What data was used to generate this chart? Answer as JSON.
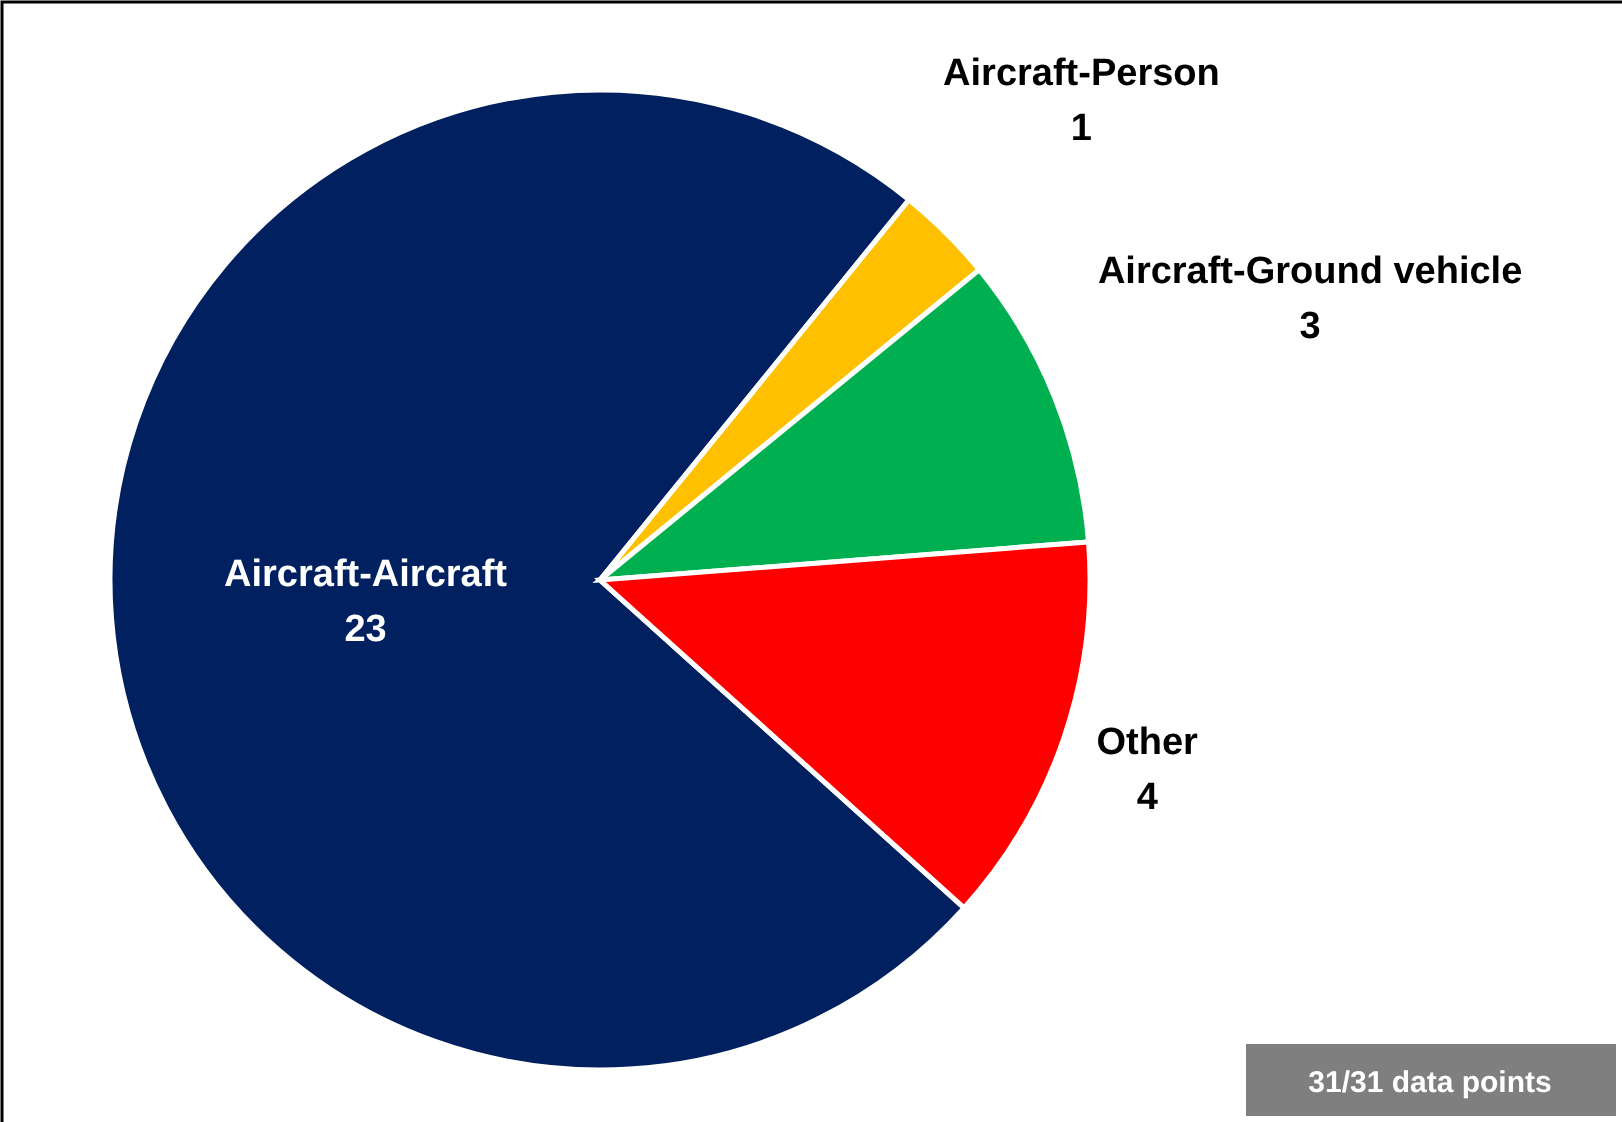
{
  "chart_data": {
    "type": "pie",
    "categories": [
      "Aircraft-Aircraft",
      "Aircraft-Person",
      "Aircraft-Ground vehicle",
      "Other"
    ],
    "values": [
      23,
      1,
      3,
      4
    ],
    "colors": [
      "#002060",
      "#ffc000",
      "#00b050",
      "#ff0000"
    ],
    "data_labels": true,
    "annotations": [
      "31/31 data points"
    ]
  }
}
